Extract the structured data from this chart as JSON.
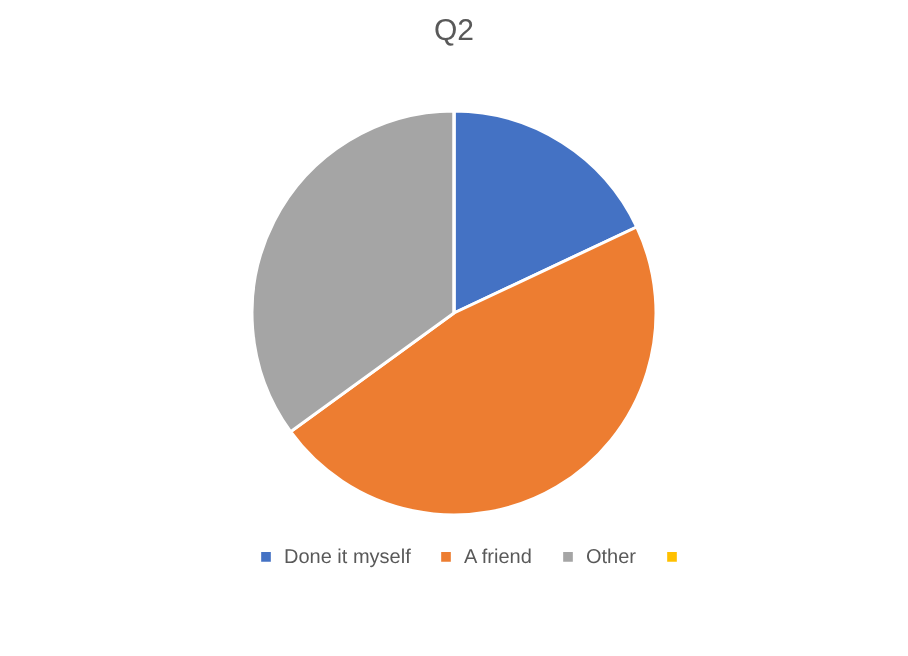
{
  "chart_data": {
    "type": "pie",
    "title": "Q2",
    "categories": [
      "Done it myself",
      "A friend",
      "Other",
      null
    ],
    "values": [
      18,
      47,
      35,
      0
    ],
    "colors": [
      "#4472c4",
      "#ed7d31",
      "#a5a5a5",
      "#ffc000"
    ],
    "legend": "bottom"
  }
}
